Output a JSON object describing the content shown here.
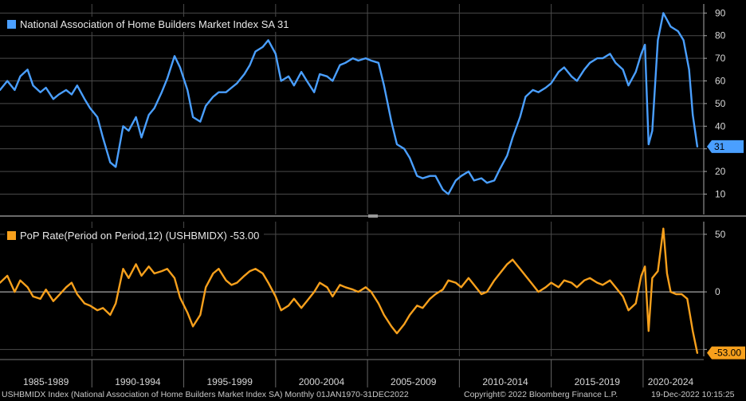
{
  "panels": [
    {
      "legend": "National Association of Home Builders Market Index SA 31",
      "color": "#4a9fff",
      "last_value_label": "31"
    },
    {
      "legend": "PoP Rate(Period on Period,12) (USHBMIDX) -53.00",
      "color": "#f7a01c",
      "last_value_label": "-53.00"
    }
  ],
  "chart_data": [
    {
      "type": "line",
      "series": [
        {
          "name": "National Association of Home Builders Market Index SA 31",
          "x": [
            1985.0,
            1985.4,
            1985.8,
            1986.1,
            1986.5,
            1986.8,
            1987.2,
            1987.5,
            1987.9,
            1988.2,
            1988.6,
            1988.9,
            1989.2,
            1989.6,
            1989.9,
            1990.3,
            1990.6,
            1991.0,
            1991.3,
            1991.7,
            1992.0,
            1992.4,
            1992.7,
            1993.1,
            1993.4,
            1993.8,
            1994.1,
            1994.5,
            1994.8,
            1995.2,
            1995.5,
            1995.9,
            1996.2,
            1996.6,
            1996.9,
            1997.3,
            1997.6,
            1997.9,
            1998.3,
            1998.6,
            1998.9,
            1999.3,
            1999.6,
            2000.0,
            2000.3,
            2000.7,
            2001.0,
            2001.4,
            2001.7,
            2002.1,
            2002.4,
            2002.8,
            2003.1,
            2003.5,
            2003.8,
            2004.2,
            2004.5,
            2004.9,
            2005.2,
            2005.6,
            2005.9,
            2006.3,
            2006.6,
            2007.0,
            2007.3,
            2007.7,
            2008.0,
            2008.4,
            2008.7,
            2009.1,
            2009.4,
            2009.8,
            2010.1,
            2010.5,
            2010.8,
            2011.2,
            2011.5,
            2011.9,
            2012.2,
            2012.6,
            2012.9,
            2013.3,
            2013.6,
            2014.0,
            2014.3,
            2014.7,
            2015.0,
            2015.4,
            2015.7,
            2016.1,
            2016.4,
            2016.8,
            2017.1,
            2017.5,
            2017.8,
            2018.2,
            2018.5,
            2018.9,
            2019.2,
            2019.6,
            2019.9,
            2020.1,
            2020.3,
            2020.5,
            2020.8,
            2021.1,
            2021.5,
            2021.9,
            2022.2,
            2022.5,
            2022.7,
            2022.95
          ],
          "values": [
            56,
            60,
            56,
            62,
            65,
            58,
            55,
            57,
            52,
            54,
            56,
            54,
            58,
            52,
            48,
            44,
            35,
            24,
            22,
            40,
            38,
            44,
            35,
            45,
            48,
            55,
            61,
            71,
            66,
            56,
            44,
            42,
            49,
            53,
            55,
            55,
            57,
            59,
            63,
            67,
            73,
            75,
            78,
            72,
            60,
            62,
            58,
            64,
            60,
            55,
            63,
            62,
            60,
            67,
            68,
            70,
            69,
            70,
            69,
            68,
            58,
            42,
            32,
            30,
            26,
            18,
            17,
            18,
            18,
            12,
            10,
            16,
            18,
            20,
            16,
            17,
            15,
            16,
            21,
            27,
            35,
            44,
            53,
            56,
            55,
            57,
            59,
            64,
            66,
            62,
            60,
            65,
            68,
            70,
            70,
            72,
            68,
            65,
            58,
            64,
            72,
            76,
            32,
            38,
            78,
            90,
            84,
            82,
            78,
            65,
            45,
            31
          ]
        }
      ],
      "ylim": [
        1,
        94
      ],
      "yticks": [
        10,
        20,
        30,
        40,
        50,
        60,
        70,
        80,
        90
      ],
      "grid": true
    },
    {
      "type": "line",
      "series": [
        {
          "name": "PoP Rate(Period on Period,12) (USHBMIDX) -53.00",
          "x": [
            1985.0,
            1985.4,
            1985.8,
            1986.1,
            1986.5,
            1986.8,
            1987.2,
            1987.5,
            1987.9,
            1988.2,
            1988.6,
            1988.9,
            1989.2,
            1989.6,
            1989.9,
            1990.3,
            1990.6,
            1991.0,
            1991.3,
            1991.7,
            1992.0,
            1992.4,
            1992.7,
            1993.1,
            1993.4,
            1993.8,
            1994.1,
            1994.5,
            1994.8,
            1995.2,
            1995.5,
            1995.9,
            1996.2,
            1996.6,
            1996.9,
            1997.3,
            1997.6,
            1997.9,
            1998.3,
            1998.6,
            1998.9,
            1999.3,
            1999.6,
            2000.0,
            2000.3,
            2000.7,
            2001.0,
            2001.4,
            2001.7,
            2002.1,
            2002.4,
            2002.8,
            2003.1,
            2003.5,
            2003.8,
            2004.2,
            2004.5,
            2004.9,
            2005.2,
            2005.6,
            2005.9,
            2006.3,
            2006.6,
            2007.0,
            2007.3,
            2007.7,
            2008.0,
            2008.4,
            2008.7,
            2009.1,
            2009.4,
            2009.8,
            2010.1,
            2010.5,
            2010.8,
            2011.2,
            2011.5,
            2011.9,
            2012.2,
            2012.6,
            2012.9,
            2013.3,
            2013.6,
            2014.0,
            2014.3,
            2014.7,
            2015.0,
            2015.4,
            2015.7,
            2016.1,
            2016.4,
            2016.8,
            2017.1,
            2017.5,
            2017.8,
            2018.2,
            2018.5,
            2018.9,
            2019.2,
            2019.6,
            2019.9,
            2020.1,
            2020.3,
            2020.5,
            2020.8,
            2021.1,
            2021.3,
            2021.5,
            2021.8,
            2022.1,
            2022.4,
            2022.7,
            2022.95
          ],
          "values": [
            8,
            14,
            0,
            10,
            4,
            -4,
            -6,
            2,
            -8,
            -3,
            4,
            8,
            -2,
            -10,
            -12,
            -16,
            -14,
            -20,
            -10,
            20,
            12,
            24,
            14,
            22,
            16,
            18,
            20,
            12,
            -5,
            -18,
            -30,
            -20,
            4,
            16,
            20,
            10,
            6,
            8,
            14,
            18,
            20,
            16,
            8,
            -4,
            -16,
            -12,
            -6,
            -14,
            -8,
            0,
            8,
            4,
            -4,
            6,
            4,
            2,
            0,
            4,
            0,
            -10,
            -20,
            -30,
            -36,
            -28,
            -20,
            -12,
            -14,
            -6,
            -2,
            2,
            10,
            8,
            4,
            12,
            6,
            -2,
            0,
            10,
            16,
            24,
            28,
            20,
            14,
            6,
            0,
            4,
            8,
            4,
            10,
            8,
            4,
            10,
            12,
            8,
            6,
            10,
            4,
            -4,
            -16,
            -10,
            14,
            22,
            -34,
            12,
            18,
            55,
            16,
            0,
            -2,
            -2,
            -6,
            -34,
            -53
          ]
        }
      ],
      "ylim": [
        -56,
        61
      ],
      "yticks": [
        -50,
        0,
        50
      ],
      "ytick_labels": [
        "",
        "0",
        "50"
      ],
      "grid": true
    }
  ],
  "x_axis": {
    "xlim": [
      1985.0,
      2023.3
    ],
    "range_labels": [
      "1985-1989",
      "1990-1994",
      "1995-1999",
      "2000-2004",
      "2005-2009",
      "2010-2014",
      "2015-2019",
      "2020-2024"
    ],
    "range_boundaries": [
      1990,
      1995,
      2000,
      2005,
      2010,
      2015,
      2020
    ]
  },
  "footer": {
    "left": "USHBMIDX Index (National Association of Home Builders Market Index SA)  Monthly 01JAN1970-31DEC2022",
    "center": "Copyright© 2022 Bloomberg Finance L.P.",
    "right": "19-Dec-2022 10:15:25"
  }
}
